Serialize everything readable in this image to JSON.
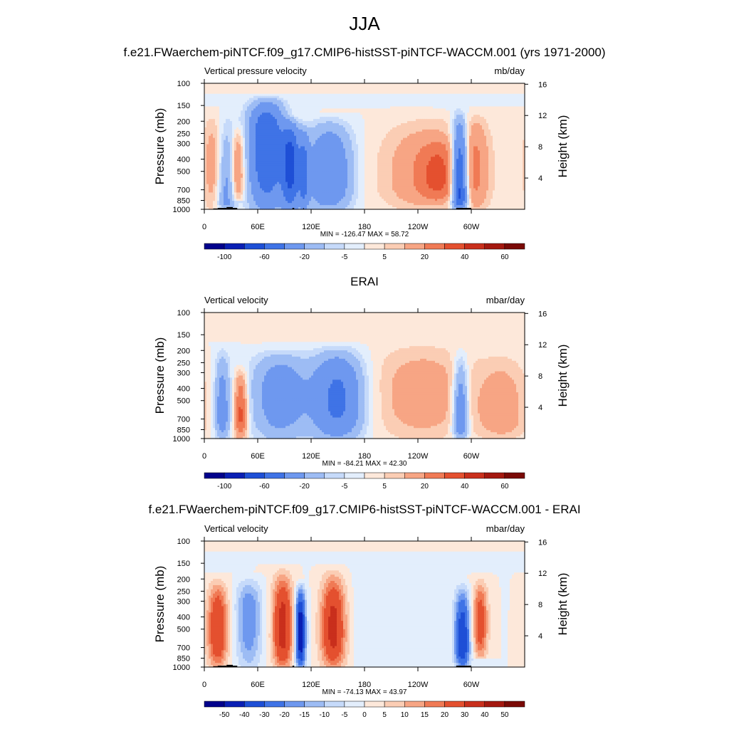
{
  "figure": {
    "title": "JJA",
    "panel_titles": [
      "f.e21.FWaerchem-piNTCF.f09_g17.CMIP6-histSST-piNTCF-WACCM.001 (yrs 1971-2000)",
      "ERAI",
      "f.e21.FWaerchem-piNTCF.f09_g17.CMIP6-histSST-piNTCF-WACCM.001 - ERAI"
    ]
  },
  "chart_data": [
    {
      "type": "heatmap",
      "title": "f.e21.FWaerchem-piNTCF.f09_g17.CMIP6-histSST-piNTCF-WACCM.001 (yrs 1971-2000)",
      "left_label": "Vertical pressure velocity",
      "right_label": "mb/day",
      "ylabel": "Pressure (mb)",
      "ylabel_right": "Height (km)",
      "x_ticks": [
        "0",
        "60E",
        "120E",
        "180",
        "120W",
        "60W"
      ],
      "y_ticks": [
        "100",
        "150",
        "200",
        "250",
        "300",
        "400",
        "500",
        "700",
        "850",
        "1000"
      ],
      "height_ticks": [
        "16",
        "12",
        "8",
        "4"
      ],
      "stats": "MIN = -126.47  MAX =  58.72",
      "colorbar_labels": [
        "-100",
        "-60",
        "-20",
        "-5",
        "5",
        "20",
        "40",
        "60"
      ],
      "levels": [
        -120,
        -100,
        -80,
        -60,
        -40,
        -20,
        -10,
        -5,
        0,
        5,
        10,
        20,
        30,
        40,
        50,
        60
      ],
      "features": [
        {
          "lon": 10,
          "width": 8,
          "ptop": 150,
          "pbot": 1000,
          "value": 15,
          "pcore": 400
        },
        {
          "lon": 24,
          "width": 7,
          "ptop": 150,
          "pbot": 1000,
          "value": -25,
          "pcore": 850
        },
        {
          "lon": 38,
          "width": 5,
          "ptop": 200,
          "pbot": 850,
          "value": 25,
          "pcore": 450
        },
        {
          "lon": 70,
          "width": 14,
          "ptop": 120,
          "pbot": 1000,
          "value": -60,
          "pcore": 250
        },
        {
          "lon": 97,
          "width": 7,
          "ptop": 180,
          "pbot": 1000,
          "value": -60,
          "pcore": 400
        },
        {
          "lon": 112,
          "width": 4,
          "ptop": 200,
          "pbot": 1000,
          "value": -35,
          "pcore": 500
        },
        {
          "lon": 140,
          "width": 18,
          "ptop": 170,
          "pbot": 1000,
          "value": -40,
          "pcore": 500
        },
        {
          "lon": 255,
          "width": 38,
          "ptop": 160,
          "pbot": 1000,
          "value": 20,
          "pcore": 500
        },
        {
          "lon": 263,
          "width": 15,
          "ptop": 250,
          "pbot": 850,
          "value": 15,
          "pcore": 500
        },
        {
          "lon": 287,
          "width": 6,
          "ptop": 150,
          "pbot": 1000,
          "value": -80,
          "pcore": 700
        },
        {
          "lon": 305,
          "width": 10,
          "ptop": 150,
          "pbot": 1000,
          "value": 15,
          "pcore": 400
        }
      ]
    },
    {
      "type": "heatmap",
      "title": "ERAI",
      "left_label": "Vertical velocity",
      "right_label": "mbar/day",
      "ylabel": "Pressure (mb)",
      "ylabel_right": "Height (km)",
      "x_ticks": [
        "0",
        "60E",
        "120E",
        "180",
        "120W",
        "60W"
      ],
      "y_ticks": [
        "100",
        "150",
        "200",
        "250",
        "300",
        "400",
        "500",
        "700",
        "850",
        "1000"
      ],
      "height_ticks": [
        "16",
        "12",
        "8",
        "4"
      ],
      "stats": "MIN = -84.21  MAX =  42.30",
      "colorbar_labels": [
        "-100",
        "-60",
        "-20",
        "-5",
        "5",
        "20",
        "40",
        "60"
      ],
      "levels": [
        -120,
        -100,
        -80,
        -60,
        -40,
        -20,
        -10,
        -5,
        0,
        5,
        10,
        20,
        30,
        40,
        50,
        60
      ],
      "features": [
        {
          "lon": 20,
          "width": 6,
          "ptop": 170,
          "pbot": 1000,
          "value": -30,
          "pcore": 600
        },
        {
          "lon": 41,
          "width": 5,
          "ptop": 250,
          "pbot": 1000,
          "value": 35,
          "pcore": 600
        },
        {
          "lon": 85,
          "width": 22,
          "ptop": 180,
          "pbot": 1000,
          "value": -30,
          "pcore": 400
        },
        {
          "lon": 150,
          "width": 20,
          "ptop": 170,
          "pbot": 1000,
          "value": -45,
          "pcore": 450
        },
        {
          "lon": 245,
          "width": 40,
          "ptop": 150,
          "pbot": 1000,
          "value": 15,
          "pcore": 400
        },
        {
          "lon": 288,
          "width": 6,
          "ptop": 180,
          "pbot": 1000,
          "value": -40,
          "pcore": 700
        },
        {
          "lon": 335,
          "width": 20,
          "ptop": 180,
          "pbot": 1000,
          "value": 15,
          "pcore": 600
        }
      ]
    },
    {
      "type": "heatmap",
      "title": "f.e21.FWaerchem-piNTCF.f09_g17.CMIP6-histSST-piNTCF-WACCM.001 - ERAI",
      "left_label": "Vertical velocity",
      "right_label": "mbar/day",
      "ylabel": "Pressure (mb)",
      "ylabel_right": "Height (km)",
      "x_ticks": [
        "0",
        "60E",
        "120E",
        "180",
        "120W",
        "60W"
      ],
      "y_ticks": [
        "100",
        "150",
        "200",
        "250",
        "300",
        "400",
        "500",
        "700",
        "850",
        "1000"
      ],
      "height_ticks": [
        "16",
        "12",
        "8",
        "4"
      ],
      "stats": "MIN = -74.13  MAX =  43.97",
      "colorbar_labels": [
        "-50",
        "-40",
        "-30",
        "-20",
        "-15",
        "-10",
        "-5",
        "0",
        "5",
        "10",
        "15",
        "20",
        "30",
        "40",
        "50"
      ],
      "levels": [
        -60,
        -50,
        -40,
        -30,
        -20,
        -15,
        -10,
        -5,
        0,
        5,
        10,
        15,
        20,
        30,
        40,
        50
      ],
      "features": [
        {
          "lon": 15,
          "width": 8,
          "ptop": 180,
          "pbot": 1000,
          "value": 30,
          "pcore": 450
        },
        {
          "lon": 50,
          "width": 10,
          "ptop": 180,
          "pbot": 1000,
          "value": -20,
          "pcore": 350
        },
        {
          "lon": 88,
          "width": 8,
          "ptop": 150,
          "pbot": 1000,
          "value": 35,
          "pcore": 450
        },
        {
          "lon": 108,
          "width": 4,
          "ptop": 200,
          "pbot": 1000,
          "value": -50,
          "pcore": 500
        },
        {
          "lon": 145,
          "width": 10,
          "ptop": 150,
          "pbot": 1000,
          "value": 35,
          "pcore": 450
        },
        {
          "lon": 200,
          "width": 40,
          "ptop": 120,
          "pbot": 1000,
          "value": -3,
          "pcore": 300
        },
        {
          "lon": 290,
          "width": 6,
          "ptop": 200,
          "pbot": 1000,
          "value": -40,
          "pcore": 600
        },
        {
          "lon": 310,
          "width": 6,
          "ptop": 180,
          "pbot": 850,
          "value": 25,
          "pcore": 400
        }
      ]
    }
  ]
}
